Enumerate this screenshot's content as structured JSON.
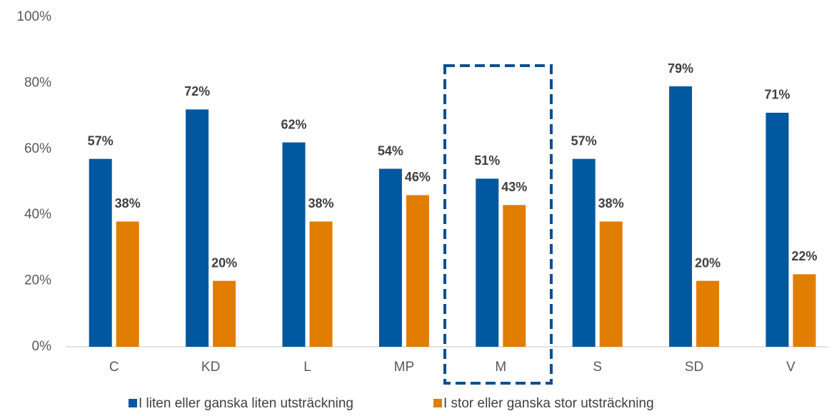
{
  "chart_data": {
    "type": "bar",
    "categories": [
      "C",
      "KD",
      "L",
      "MP",
      "M",
      "S",
      "SD",
      "V"
    ],
    "series": [
      {
        "name": "I liten eller ganska liten utsträckning",
        "color": "#0058a0",
        "values": [
          57,
          72,
          62,
          54,
          51,
          57,
          79,
          71
        ],
        "value_labels": [
          "57%",
          "72%",
          "62%",
          "54%",
          "51%",
          "57%",
          "79%",
          "71%"
        ]
      },
      {
        "name": "I stor eller ganska stor utsträckning",
        "color": "#e17d00",
        "values": [
          38,
          20,
          38,
          46,
          43,
          38,
          20,
          22
        ],
        "value_labels": [
          "38%",
          "20%",
          "38%",
          "46%",
          "43%",
          "38%",
          "20%",
          "22%"
        ]
      }
    ],
    "ylim": [
      0,
      100
    ],
    "yticks": [
      {
        "value": 0,
        "label": "0%"
      },
      {
        "value": 20,
        "label": "20%"
      },
      {
        "value": 40,
        "label": "40%"
      },
      {
        "value": 60,
        "label": "60%"
      },
      {
        "value": 80,
        "label": "80%"
      },
      {
        "value": 100,
        "label": "100%"
      }
    ],
    "grid": false,
    "legend": "bottom"
  }
}
